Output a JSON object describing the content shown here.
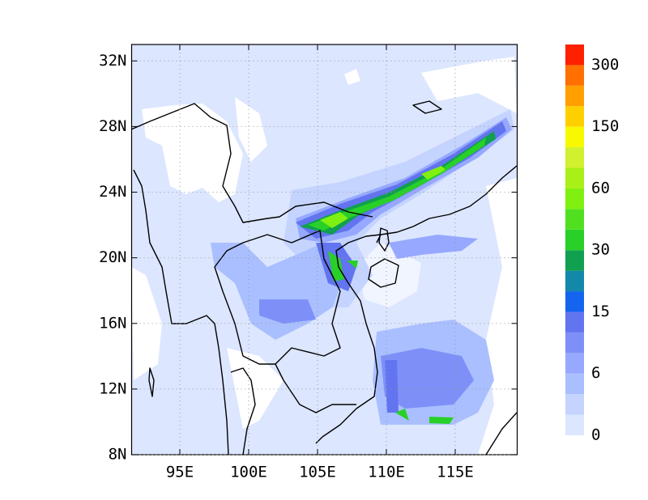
{
  "chart_data": {
    "type": "contour-map",
    "xlim": [
      91.5,
      119.5
    ],
    "ylim": [
      8,
      33
    ],
    "xticks": [
      {
        "value": 95,
        "label": "95E"
      },
      {
        "value": 100,
        "label": "100E"
      },
      {
        "value": 105,
        "label": "105E"
      },
      {
        "value": 110,
        "label": "110E"
      },
      {
        "value": 115,
        "label": "115E"
      }
    ],
    "yticks": [
      {
        "value": 8,
        "label": "8N"
      },
      {
        "value": 12,
        "label": "12N"
      },
      {
        "value": 16,
        "label": "16N"
      },
      {
        "value": 20,
        "label": "20N"
      },
      {
        "value": 24,
        "label": "24N"
      },
      {
        "value": 28,
        "label": "28N"
      },
      {
        "value": 32,
        "label": "32N"
      }
    ],
    "grid": true,
    "colorbar_labels": [
      0,
      6,
      15,
      30,
      60,
      150,
      300
    ],
    "colors": [
      "#dce6ff",
      "#c4d4ff",
      "#aabfff",
      "#96a8ff",
      "#7e90f8",
      "#6274f0",
      "#1464f0",
      "#1488a8",
      "#10a050",
      "#28d028",
      "#50e020",
      "#80f010",
      "#a8f018",
      "#d0f030",
      "#f8f800",
      "#ffd000",
      "#ffa000",
      "#ff7000",
      "#ff2000"
    ]
  }
}
